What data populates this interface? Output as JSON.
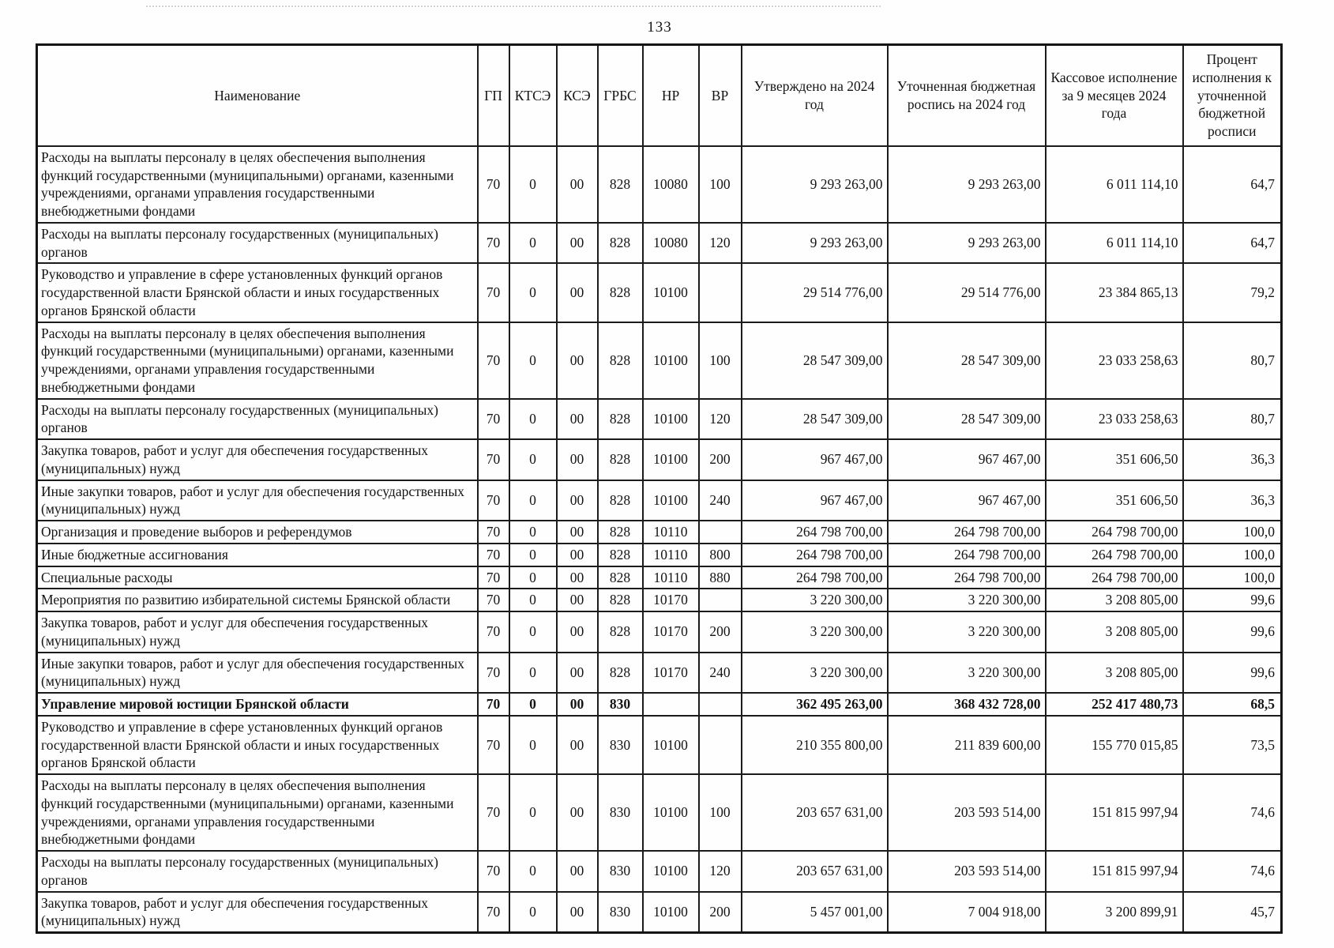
{
  "page": {
    "number": "133"
  },
  "table": {
    "headers": [
      "Наименование",
      "ГП",
      "КТСЭ",
      "КСЭ",
      "ГРБС",
      "НР",
      "ВР",
      "Утверждено на 2024 год",
      "Уточненная бюджетная роспись на 2024 год",
      "Кассовое исполнение за 9 месяцев 2024 года",
      "Процент исполнения к уточненной бюджетной росписи"
    ],
    "rows": [
      {
        "name": "Расходы на выплаты персоналу в целях обеспечения выполнения функций государственными (муниципальными) органами, казенными учреждениями, органами управления государственными внебюджетными фондами",
        "gp": "70",
        "ktse": "0",
        "kse": "00",
        "grbs": "828",
        "nr": "10080",
        "vr": "100",
        "approved": "9 293 263,00",
        "refined": "9 293 263,00",
        "cash": "6 011 114,10",
        "percent": "64,7",
        "bold": false
      },
      {
        "name": "Расходы на выплаты персоналу государственных (муниципальных) органов",
        "gp": "70",
        "ktse": "0",
        "kse": "00",
        "grbs": "828",
        "nr": "10080",
        "vr": "120",
        "approved": "9 293 263,00",
        "refined": "9 293 263,00",
        "cash": "6 011 114,10",
        "percent": "64,7",
        "bold": false
      },
      {
        "name": "Руководство и управление в сфере установленных функций органов государственной власти Брянской области и иных государственных органов Брянской области",
        "gp": "70",
        "ktse": "0",
        "kse": "00",
        "grbs": "828",
        "nr": "10100",
        "vr": "",
        "approved": "29 514 776,00",
        "refined": "29 514 776,00",
        "cash": "23 384 865,13",
        "percent": "79,2",
        "bold": false
      },
      {
        "name": "Расходы на выплаты персоналу в целях обеспечения выполнения функций государственными (муниципальными) органами, казенными учреждениями, органами управления государственными внебюджетными фондами",
        "gp": "70",
        "ktse": "0",
        "kse": "00",
        "grbs": "828",
        "nr": "10100",
        "vr": "100",
        "approved": "28 547 309,00",
        "refined": "28 547 309,00",
        "cash": "23 033 258,63",
        "percent": "80,7",
        "bold": false
      },
      {
        "name": "Расходы на выплаты персоналу государственных (муниципальных) органов",
        "gp": "70",
        "ktse": "0",
        "kse": "00",
        "grbs": "828",
        "nr": "10100",
        "vr": "120",
        "approved": "28 547 309,00",
        "refined": "28 547 309,00",
        "cash": "23 033 258,63",
        "percent": "80,7",
        "bold": false
      },
      {
        "name": "Закупка товаров, работ и услуг для обеспечения государственных (муниципальных) нужд",
        "gp": "70",
        "ktse": "0",
        "kse": "00",
        "grbs": "828",
        "nr": "10100",
        "vr": "200",
        "approved": "967 467,00",
        "refined": "967 467,00",
        "cash": "351 606,50",
        "percent": "36,3",
        "bold": false
      },
      {
        "name": "Иные закупки товаров, работ и услуг для обеспечения государственных (муниципальных) нужд",
        "gp": "70",
        "ktse": "0",
        "kse": "00",
        "grbs": "828",
        "nr": "10100",
        "vr": "240",
        "approved": "967 467,00",
        "refined": "967 467,00",
        "cash": "351 606,50",
        "percent": "36,3",
        "bold": false
      },
      {
        "name": "Организация и проведение выборов и референдумов",
        "gp": "70",
        "ktse": "0",
        "kse": "00",
        "grbs": "828",
        "nr": "10110",
        "vr": "",
        "approved": "264 798 700,00",
        "refined": "264 798 700,00",
        "cash": "264 798 700,00",
        "percent": "100,0",
        "bold": false
      },
      {
        "name": "Иные бюджетные ассигнования",
        "gp": "70",
        "ktse": "0",
        "kse": "00",
        "grbs": "828",
        "nr": "10110",
        "vr": "800",
        "approved": "264 798 700,00",
        "refined": "264 798 700,00",
        "cash": "264 798 700,00",
        "percent": "100,0",
        "bold": false
      },
      {
        "name": "Специальные расходы",
        "gp": "70",
        "ktse": "0",
        "kse": "00",
        "grbs": "828",
        "nr": "10110",
        "vr": "880",
        "approved": "264 798 700,00",
        "refined": "264 798 700,00",
        "cash": "264 798 700,00",
        "percent": "100,0",
        "bold": false
      },
      {
        "name": "Мероприятия по развитию избирательной системы Брянской области",
        "gp": "70",
        "ktse": "0",
        "kse": "00",
        "grbs": "828",
        "nr": "10170",
        "vr": "",
        "approved": "3 220 300,00",
        "refined": "3 220 300,00",
        "cash": "3 208 805,00",
        "percent": "99,6",
        "bold": false
      },
      {
        "name": "Закупка товаров, работ и услуг для обеспечения государственных (муниципальных) нужд",
        "gp": "70",
        "ktse": "0",
        "kse": "00",
        "grbs": "828",
        "nr": "10170",
        "vr": "200",
        "approved": "3 220 300,00",
        "refined": "3 220 300,00",
        "cash": "3 208 805,00",
        "percent": "99,6",
        "bold": false
      },
      {
        "name": "Иные закупки товаров, работ и услуг для обеспечения государственных (муниципальных) нужд",
        "gp": "70",
        "ktse": "0",
        "kse": "00",
        "grbs": "828",
        "nr": "10170",
        "vr": "240",
        "approved": "3 220 300,00",
        "refined": "3 220 300,00",
        "cash": "3 208 805,00",
        "percent": "99,6",
        "bold": false
      },
      {
        "name": "Управление мировой юстиции Брянской области",
        "gp": "70",
        "ktse": "0",
        "kse": "00",
        "grbs": "830",
        "nr": "",
        "vr": "",
        "approved": "362 495 263,00",
        "refined": "368 432 728,00",
        "cash": "252 417 480,73",
        "percent": "68,5",
        "bold": true
      },
      {
        "name": "Руководство и управление в сфере установленных функций органов государственной власти Брянской области и иных государственных органов Брянской области",
        "gp": "70",
        "ktse": "0",
        "kse": "00",
        "grbs": "830",
        "nr": "10100",
        "vr": "",
        "approved": "210 355 800,00",
        "refined": "211 839 600,00",
        "cash": "155 770 015,85",
        "percent": "73,5",
        "bold": false
      },
      {
        "name": "Расходы на выплаты персоналу в целях обеспечения выполнения функций государственными (муниципальными) органами, казенными учреждениями, органами управления государственными внебюджетными фондами",
        "gp": "70",
        "ktse": "0",
        "kse": "00",
        "grbs": "830",
        "nr": "10100",
        "vr": "100",
        "approved": "203 657 631,00",
        "refined": "203 593 514,00",
        "cash": "151 815 997,94",
        "percent": "74,6",
        "bold": false
      },
      {
        "name": "Расходы на выплаты персоналу государственных (муниципальных) органов",
        "gp": "70",
        "ktse": "0",
        "kse": "00",
        "grbs": "830",
        "nr": "10100",
        "vr": "120",
        "approved": "203 657 631,00",
        "refined": "203 593 514,00",
        "cash": "151 815 997,94",
        "percent": "74,6",
        "bold": false
      },
      {
        "name": "Закупка товаров, работ и услуг для обеспечения государственных (муниципальных) нужд",
        "gp": "70",
        "ktse": "0",
        "kse": "00",
        "grbs": "830",
        "nr": "10100",
        "vr": "200",
        "approved": "5 457 001,00",
        "refined": "7 004 918,00",
        "cash": "3 200 899,91",
        "percent": "45,7",
        "bold": false
      }
    ]
  }
}
